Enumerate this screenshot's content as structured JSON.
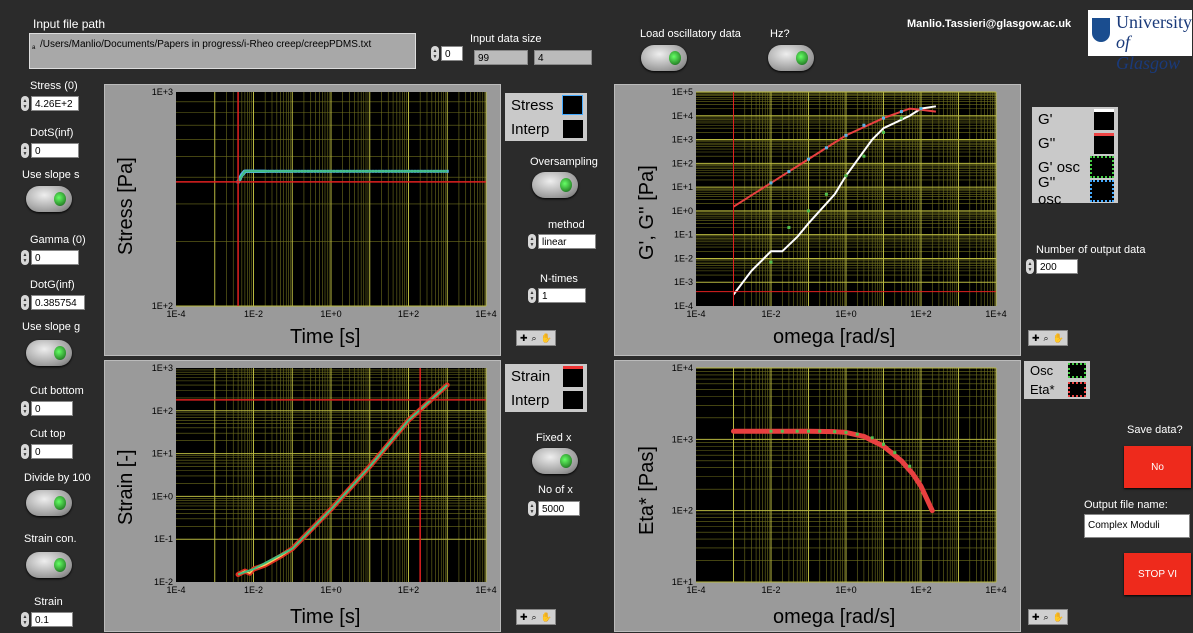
{
  "header": {
    "input_path_label": "Input file path",
    "input_path_value": "/Users/Manlio/Documents/Papers in progress/i-Rheo creep/creepPDMS.txt",
    "input_index": "0",
    "input_size_label": "Input data size",
    "input_size_rows": "99",
    "input_size_cols": "4",
    "load_osc_label": "Load oscillatory data",
    "hz_label": "Hz?",
    "email": "Manlio.Tassieri@glasgow.ac.uk",
    "logo_text_1": "University",
    "logo_text_2": "of Glasgow"
  },
  "left_controls": {
    "stress0_label": "Stress (0)",
    "stress0_value": "4.26E+2",
    "dots_label": "DotS(inf)",
    "dots_value": "0",
    "use_slope_s_label": "Use slope s",
    "gamma0_label": "Gamma (0)",
    "gamma0_value": "0",
    "dotg_label": "DotG(inf)",
    "dotg_value": "0.385754",
    "use_slope_g_label": "Use slope g",
    "cut_bottom_label": "Cut bottom",
    "cut_bottom_value": "0",
    "cut_top_label": "Cut top",
    "cut_top_value": "0",
    "divide_label": "Divide by 100",
    "strain_con_label": "Strain con.",
    "strain_label": "Strain",
    "strain_value": "0.1"
  },
  "mid_controls": {
    "oversampling_label": "Oversampling",
    "method_label": "method",
    "method_value": "linear",
    "ntimes_label": "N-times",
    "ntimes_value": "1",
    "fixedx_label": "Fixed x",
    "noofx_label": "No of x",
    "noofx_value": "5000"
  },
  "right_controls": {
    "num_output_label": "Number of output data",
    "num_output_value": "200",
    "save_label": "Save data?",
    "save_button": "No",
    "output_name_label": "Output file name:",
    "output_name_value": "Complex Moduli",
    "stop_button": "STOP VI"
  },
  "plots": {
    "stress": {
      "ylabel": "Stress [Pa]",
      "xlabel": "Time [s]",
      "legend": [
        "Stress",
        "Interp"
      ],
      "xticks": [
        "1E-4",
        "1E-2",
        "1E+0",
        "1E+2",
        "1E+4"
      ],
      "yticks": [
        "1E+3",
        "1E+2"
      ]
    },
    "moduli": {
      "ylabel": "G', G'' [Pa]",
      "xlabel": "omega [rad/s]",
      "legend": [
        "G'",
        "G''",
        "G' osc",
        "G'' osc"
      ],
      "xticks": [
        "1E-4",
        "1E-2",
        "1E+0",
        "1E+2",
        "1E+4"
      ],
      "yticks": [
        "1E+5",
        "1E+4",
        "1E+3",
        "1E+2",
        "1E+1",
        "1E+0",
        "1E-1",
        "1E-2",
        "1E-3",
        "1E-4"
      ]
    },
    "strain": {
      "ylabel": "Strain [-]",
      "xlabel": "Time [s]",
      "legend": [
        "Strain",
        "Interp"
      ],
      "xticks": [
        "1E-4",
        "1E-2",
        "1E+0",
        "1E+2",
        "1E+4"
      ],
      "yticks": [
        "1E+3",
        "1E+2",
        "1E+1",
        "1E+0",
        "1E-1",
        "1E-2"
      ]
    },
    "eta": {
      "ylabel": "Eta* [Pas]",
      "xlabel": "omega [rad/s]",
      "legend": [
        "Osc",
        "Eta*"
      ],
      "xticks": [
        "1E-4",
        "1E-2",
        "1E+0",
        "1E+2",
        "1E+4"
      ],
      "yticks": [
        "1E+4",
        "1E+3",
        "1E+2",
        "1E+1"
      ]
    }
  },
  "chart_data": [
    {
      "type": "line",
      "xlabel": "Time [s]",
      "ylabel": "Stress [Pa]",
      "xscale": "log",
      "yscale": "log",
      "xlim": [
        0.0001,
        10000
      ],
      "ylim": [
        100,
        1000
      ],
      "series": [
        {
          "name": "Stress",
          "x": [
            0.004,
            0.005,
            0.006,
            0.008,
            0.01,
            0.02,
            0.1,
            1,
            10,
            100,
            1000
          ],
          "y": [
            380,
            410,
            426,
            426,
            426,
            426,
            426,
            426,
            426,
            426,
            426
          ]
        },
        {
          "name": "Interp",
          "x": [
            0.004,
            0.006,
            0.01,
            1000
          ],
          "y": [
            380,
            426,
            426,
            426
          ]
        }
      ],
      "cursor": {
        "x": 0.004,
        "y": 380
      }
    },
    {
      "type": "line",
      "xlabel": "omega [rad/s]",
      "ylabel": "G', G'' [Pa]",
      "xscale": "log",
      "yscale": "log",
      "xlim": [
        0.0001,
        10000
      ],
      "ylim": [
        0.0001,
        100000
      ],
      "series": [
        {
          "name": "G'",
          "x": [
            0.001,
            0.003,
            0.01,
            0.02,
            0.05,
            0.1,
            0.5,
            1,
            5,
            10,
            50,
            100,
            250
          ],
          "y": [
            0.0003,
            0.003,
            0.02,
            0.02,
            0.08,
            0.3,
            5,
            30,
            1000,
            3000,
            10000,
            20000,
            25000
          ]
        },
        {
          "name": "G''",
          "x": [
            0.001,
            0.01,
            0.1,
            1,
            10,
            50,
            100,
            250
          ],
          "y": [
            1.5,
            15,
            150,
            1500,
            8000,
            20000,
            18000,
            15000
          ]
        },
        {
          "name": "G' osc",
          "x": [
            0.01,
            0.03,
            0.1,
            0.3,
            1,
            3,
            10,
            30,
            100
          ],
          "y": [
            0.007,
            0.2,
            1,
            5,
            30,
            200,
            2000,
            8000,
            20000
          ]
        },
        {
          "name": "G'' osc",
          "x": [
            0.01,
            0.03,
            0.1,
            0.3,
            1,
            3,
            10,
            30,
            100
          ],
          "y": [
            15,
            45,
            150,
            450,
            1500,
            4000,
            8000,
            15000,
            20000
          ]
        }
      ]
    },
    {
      "type": "line",
      "xlabel": "Time [s]",
      "ylabel": "Strain [-]",
      "xscale": "log",
      "yscale": "log",
      "xlim": [
        0.0001,
        10000
      ],
      "ylim": [
        0.01,
        1000
      ],
      "series": [
        {
          "name": "Strain",
          "x": [
            0.004,
            0.006,
            0.008,
            0.01,
            0.02,
            0.05,
            0.1,
            1,
            10,
            100,
            1000
          ],
          "y": [
            0.015,
            0.018,
            0.016,
            0.02,
            0.025,
            0.04,
            0.06,
            0.5,
            5,
            60,
            400
          ]
        },
        {
          "name": "Interp",
          "x": [
            0.004,
            0.01,
            0.1,
            1,
            10,
            100,
            1000
          ],
          "y": [
            0.015,
            0.02,
            0.06,
            0.5,
            5,
            60,
            400
          ]
        }
      ],
      "cursor": {
        "x": 200,
        "y": 180
      }
    },
    {
      "type": "line",
      "xlabel": "omega [rad/s]",
      "ylabel": "Eta* [Pas]",
      "xscale": "log",
      "yscale": "log",
      "xlim": [
        0.0001,
        10000
      ],
      "ylim": [
        10,
        10000
      ],
      "series": [
        {
          "name": "Eta*",
          "x": [
            0.001,
            0.01,
            0.1,
            0.5,
            1,
            3,
            10,
            30,
            60,
            100,
            200
          ],
          "y": [
            1300,
            1300,
            1300,
            1280,
            1250,
            1100,
            800,
            500,
            330,
            220,
            100
          ]
        },
        {
          "name": "Osc",
          "x": [
            0.01,
            0.02,
            0.05,
            0.1,
            0.2,
            0.5,
            1,
            2,
            5,
            10,
            20,
            50
          ],
          "y": [
            1300,
            1300,
            1300,
            1300,
            1300,
            1280,
            1250,
            1180,
            1050,
            850,
            650,
            420
          ]
        }
      ]
    }
  ]
}
